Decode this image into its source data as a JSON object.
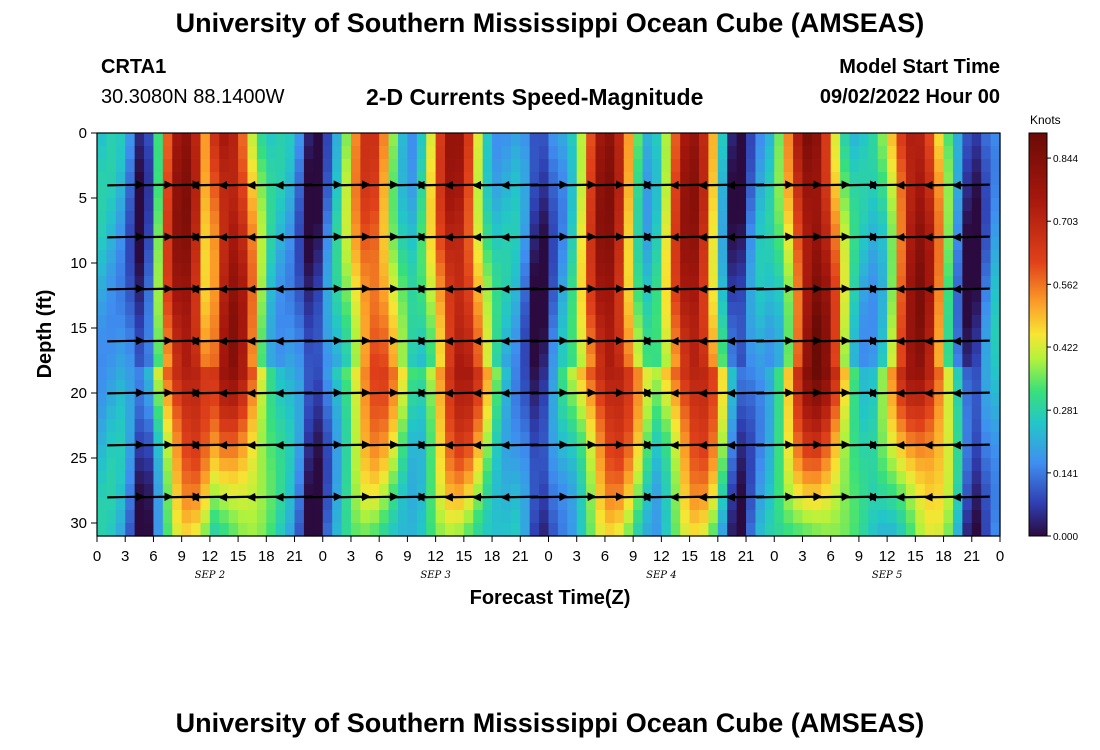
{
  "header": {
    "title": "University of Southern Mississippi Ocean Cube (AMSEAS)",
    "title_repeat": "University of Southern Mississippi Ocean Cube (AMSEAS)",
    "station": "CRTA1",
    "coords": "30.3080N  88.1400W",
    "subtitle": "2-D Currents Speed-Magnitude",
    "start_label": "Model Start Time",
    "start_value": "09/02/2022 Hour 00"
  },
  "chart_data": {
    "type": "heatmap",
    "title": "2-D Currents Speed-Magnitude",
    "xlabel": "Forecast Time(Z)",
    "ylabel": "Depth (ft)",
    "x_range_hours": [
      0,
      96
    ],
    "ylim": [
      0,
      31
    ],
    "x_tick_labels": [
      "0",
      "3",
      "6",
      "9",
      "12",
      "15",
      "18",
      "21",
      "0",
      "3",
      "6",
      "9",
      "12",
      "15",
      "18",
      "21",
      "0",
      "3",
      "6",
      "9",
      "12",
      "15",
      "18",
      "21",
      "0",
      "3",
      "6",
      "9",
      "12",
      "15",
      "18",
      "21",
      "0"
    ],
    "y_ticks": [
      0,
      5,
      10,
      15,
      20,
      25,
      30
    ],
    "date_labels": [
      {
        "label": "SEP 2",
        "hour": 12
      },
      {
        "label": "SEP 3",
        "hour": 36
      },
      {
        "label": "SEP 4",
        "hour": 60
      },
      {
        "label": "SEP 5",
        "hour": 84
      }
    ],
    "colorbar": {
      "unit": "Knots",
      "ticks": [
        0.0,
        0.141,
        0.281,
        0.422,
        0.562,
        0.703,
        0.844
      ],
      "tick_labels": [
        "0.000",
        "0.141",
        "0.281",
        "0.422",
        "0.562",
        "0.703",
        "0.844"
      ],
      "vmin": 0.0,
      "vmax": 0.9
    },
    "peak_hours_speed": [
      {
        "hour": 9,
        "speed": 0.8
      },
      {
        "hour": 14,
        "speed": 0.78
      },
      {
        "hour": 29,
        "speed": 0.62
      },
      {
        "hour": 38,
        "speed": 0.75
      },
      {
        "hour": 54,
        "speed": 0.8
      },
      {
        "hour": 63,
        "speed": 0.78
      },
      {
        "hour": 76,
        "speed": 0.85
      },
      {
        "hour": 87,
        "speed": 0.8
      }
    ],
    "low_hours": [
      5,
      23,
      47,
      68,
      93
    ],
    "vector_depths_ft": [
      4,
      8,
      12,
      16,
      20,
      24,
      28
    ],
    "vector_description": "Current direction arrows plotted at 4 ft depth intervals along forecast time"
  },
  "colors": {
    "colormap": [
      "#2b0b3f",
      "#2f3eb0",
      "#3f8ef0",
      "#23c6c8",
      "#39e07a",
      "#b4f23c",
      "#f7e533",
      "#fb9c28",
      "#e0411a",
      "#a5170d",
      "#6a0b06"
    ],
    "arrow": "#000000"
  }
}
